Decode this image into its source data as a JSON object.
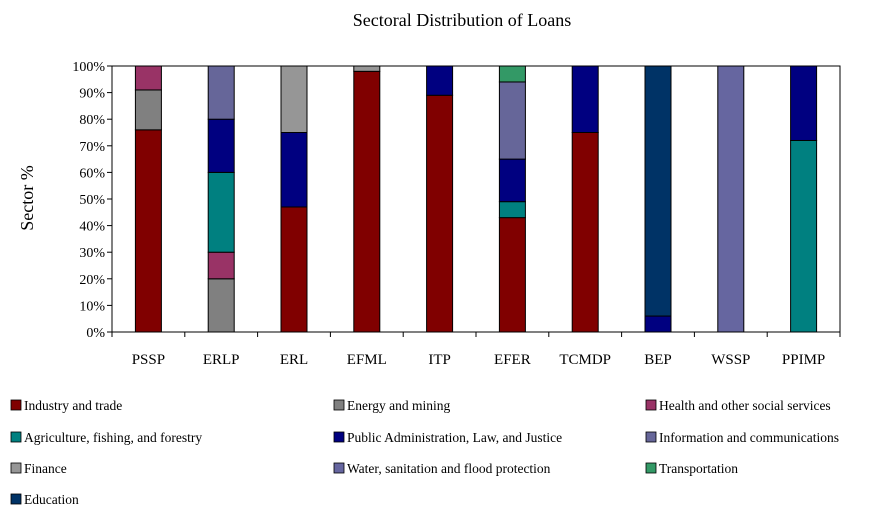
{
  "chart_data": {
    "type": "bar",
    "stacked": true,
    "title": "Sectoral Distribution of Loans",
    "xlabel": "",
    "ylabel": "Sector %",
    "ylim": [
      0,
      100
    ],
    "yticks": [
      "0%",
      "10%",
      "20%",
      "30%",
      "40%",
      "50%",
      "60%",
      "70%",
      "80%",
      "90%",
      "100%"
    ],
    "grid": false,
    "legend_position": "bottom",
    "categories": [
      "PSSP",
      "ERLP",
      "ERL",
      "EFML",
      "ITP",
      "EFER",
      "TCMDP",
      "BEP",
      "WSSP",
      "PPIMP"
    ],
    "series": [
      {
        "name": "Industry and trade",
        "color": "#800000",
        "values": [
          76,
          0,
          47,
          98,
          89,
          43,
          75,
          0,
          0,
          0
        ]
      },
      {
        "name": "Energy and mining",
        "color": "#808080",
        "values": [
          15,
          20,
          0,
          0,
          0,
          0,
          0,
          0,
          0,
          0
        ]
      },
      {
        "name": "Health and other social services",
        "color": "#993366",
        "values": [
          9,
          10,
          0,
          0,
          0,
          0,
          0,
          0,
          0,
          0
        ]
      },
      {
        "name": "Agriculture, fishing, and forestry",
        "color": "#008080",
        "values": [
          0,
          30,
          0,
          0,
          0,
          6,
          0,
          0,
          0,
          72
        ]
      },
      {
        "name": "Public Administration, Law, and Justice",
        "color": "#000080",
        "values": [
          0,
          20,
          28,
          0,
          11,
          16,
          25,
          6,
          0,
          28
        ]
      },
      {
        "name": "Information and communications",
        "color": "#666699",
        "values": [
          0,
          20,
          0,
          0,
          0,
          29,
          0,
          0,
          0,
          0
        ]
      },
      {
        "name": "Finance",
        "color": "#969696",
        "values": [
          0,
          0,
          25,
          2,
          0,
          0,
          0,
          0,
          0,
          0
        ]
      },
      {
        "name": "Water, sanitation and flood protection",
        "color": "#6666a0",
        "values": [
          0,
          0,
          0,
          0,
          0,
          0,
          0,
          0,
          100,
          0
        ]
      },
      {
        "name": "Transportation",
        "color": "#339966",
        "values": [
          0,
          0,
          0,
          0,
          0,
          6,
          0,
          0,
          0,
          0
        ]
      },
      {
        "name": "Education",
        "color": "#003366",
        "values": [
          0,
          0,
          0,
          0,
          0,
          0,
          0,
          94,
          0,
          0
        ]
      }
    ]
  }
}
